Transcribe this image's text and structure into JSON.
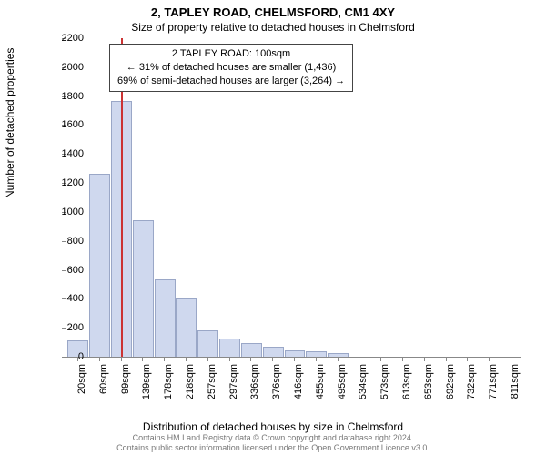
{
  "title": "2, TAPLEY ROAD, CHELMSFORD, CM1 4XY",
  "subtitle": "Size of property relative to detached houses in Chelmsford",
  "annotation": {
    "line1": "2 TAPLEY ROAD: 100sqm",
    "line2": "← 31% of detached houses are smaller (1,436)",
    "line3": "69% of semi-detached houses are larger (3,264) →"
  },
  "yaxis": {
    "label": "Number of detached properties",
    "min": 0,
    "max": 2200,
    "step": 200
  },
  "xaxis": {
    "label": "Distribution of detached houses by size in Chelmsford",
    "categories": [
      "20sqm",
      "60sqm",
      "99sqm",
      "139sqm",
      "178sqm",
      "218sqm",
      "257sqm",
      "297sqm",
      "336sqm",
      "376sqm",
      "416sqm",
      "455sqm",
      "495sqm",
      "534sqm",
      "573sqm",
      "613sqm",
      "653sqm",
      "692sqm",
      "732sqm",
      "771sqm",
      "811sqm"
    ]
  },
  "bars": {
    "values": [
      110,
      1260,
      1760,
      935,
      525,
      395,
      175,
      120,
      85,
      65,
      40,
      30,
      20,
      0,
      0,
      0,
      0,
      0,
      0,
      0,
      0
    ],
    "color": "#cfd8ee",
    "border_color": "#9aa7c7",
    "width_frac": 0.88
  },
  "reference_line": {
    "at_value": 100,
    "x_min": 20,
    "x_max": 811,
    "color": "#cc3333",
    "width": 2
  },
  "chart": {
    "background": "#ffffff",
    "axis_color": "#888888",
    "tick_font_size": 11
  },
  "footnote": {
    "line1": "Contains HM Land Registry data © Crown copyright and database right 2024.",
    "line2": "Contains public sector information licensed under the Open Government Licence v3.0."
  }
}
